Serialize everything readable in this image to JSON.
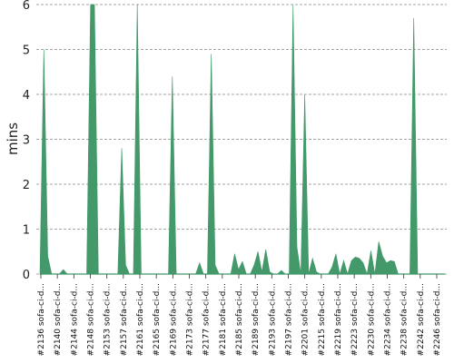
{
  "chart_data": {
    "type": "area",
    "title": "",
    "ylabel": "mins",
    "xlabel": "",
    "ylim": [
      0,
      6
    ],
    "yticks": [
      "0",
      "1",
      "2",
      "3",
      "4",
      "5",
      "6"
    ],
    "grid": "horizontal-dashed",
    "color": "#44996b",
    "tick_labels": [
      "#2136 sofa-ci-d...",
      "#2140 sofa-ci-d...",
      "#2144 sofa-ci-d...",
      "#2148 sofa-ci-d...",
      "#2153 sofa-ci-d...",
      "#2157 sofa-ci-d...",
      "#2161 sofa-ci-d...",
      "#2165 sofa-ci-d...",
      "#2169 sofa-ci-d...",
      "#2173 sofa-ci-d...",
      "#2177 sofa-ci-d...",
      "#2181 sofa-ci-d...",
      "#2185 sofa-ci-d...",
      "#2189 sofa-ci-d...",
      "#2193 sofa-ci-d...",
      "#2197 sofa-ci-d...",
      "#2201 sofa-ci-d...",
      "#2215 sofa-ci-d...",
      "#2219 sofa-ci-d...",
      "#2223 sofa-ci-d...",
      "#2230 sofa-ci-d...",
      "#2234 sofa-ci-d...",
      "#2238 sofa-ci-d...",
      "#2242 sofa-ci-d...",
      "#2246 sofa-ci-d..."
    ],
    "values": [
      0,
      5.0,
      0.4,
      0,
      0,
      0,
      0.1,
      0,
      0,
      0,
      0,
      0,
      0,
      6.3,
      6.3,
      0,
      0,
      0,
      0,
      0,
      0,
      2.8,
      0.2,
      0,
      0,
      6.3,
      0,
      0,
      0,
      0,
      0,
      0,
      0,
      0,
      4.4,
      0,
      0,
      0,
      0,
      0,
      0,
      0.25,
      0,
      0,
      4.9,
      0.2,
      0,
      0,
      0,
      0,
      0.45,
      0.1,
      0.28,
      0,
      0,
      0.2,
      0.5,
      0.05,
      0.55,
      0.05,
      0,
      0,
      0.08,
      0,
      0,
      6.0,
      0.6,
      0,
      4.0,
      0,
      0.35,
      0.05,
      0,
      0,
      0,
      0.15,
      0.45,
      0,
      0.3,
      0,
      0.3,
      0.38,
      0.35,
      0.25,
      0,
      0.52,
      0,
      0.72,
      0.4,
      0.25,
      0.3,
      0.28,
      0,
      0,
      0,
      0,
      5.7,
      0,
      0,
      0,
      0,
      0,
      0,
      0,
      0
    ]
  }
}
